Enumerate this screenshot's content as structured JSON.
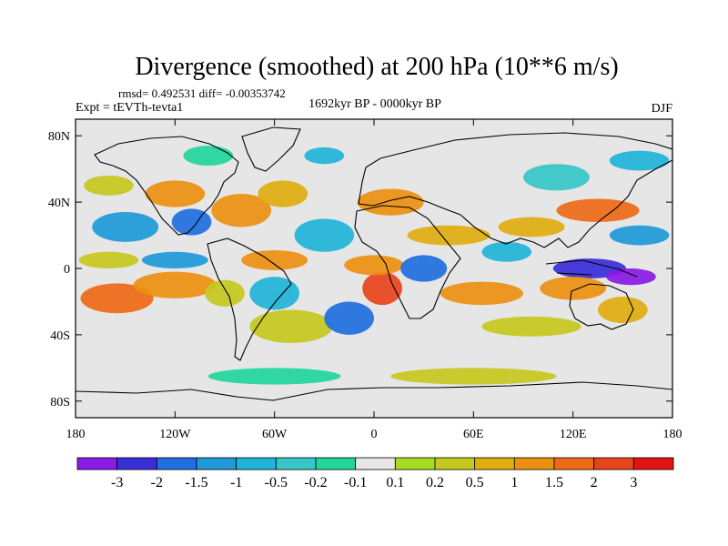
{
  "chart_data": {
    "type": "heatmap",
    "title": "Divergence (smoothed) at 200 hPa (10**6 m/s)",
    "stats": "rmsd= 0.492531 diff= -0.00353742",
    "experiment": "Expt = tEVTh-tevta1",
    "period": "1692kyr BP - 0000kyr BP",
    "season": "DJF",
    "x_ticks": [
      {
        "value": -180,
        "label": "180"
      },
      {
        "value": -120,
        "label": "120W"
      },
      {
        "value": -60,
        "label": "60W"
      },
      {
        "value": 0,
        "label": "0"
      },
      {
        "value": 60,
        "label": "60E"
      },
      {
        "value": 120,
        "label": "120E"
      },
      {
        "value": 180,
        "label": "180"
      }
    ],
    "y_ticks": [
      {
        "value": 80,
        "label": "80N"
      },
      {
        "value": 40,
        "label": "40N"
      },
      {
        "value": 0,
        "label": "0"
      },
      {
        "value": -40,
        "label": "40S"
      },
      {
        "value": -80,
        "label": "80S"
      }
    ],
    "xlim": [
      -180,
      180
    ],
    "ylim": [
      -90,
      90
    ],
    "levels": [
      "-3",
      "-2",
      "-1.5",
      "-1",
      "-0.5",
      "-0.2",
      "-0.1",
      "0.1",
      "0.2",
      "0.5",
      "1",
      "1.5",
      "2",
      "3"
    ],
    "colors": [
      "#8a1ae6",
      "#3a2ed8",
      "#1f6fe0",
      "#1e9ad8",
      "#20b4d8",
      "#36c7c8",
      "#22d69a",
      "#e6e6e6",
      "#a8dc22",
      "#c6c81e",
      "#e0ae10",
      "#ec9010",
      "#ee6a16",
      "#e8441c",
      "#e01414"
    ],
    "blobs": [
      {
        "lon": -155,
        "lat": -18,
        "rx": 22,
        "ry": 9,
        "bin": 12
      },
      {
        "lon": -120,
        "lat": -10,
        "rx": 25,
        "ry": 8,
        "bin": 11
      },
      {
        "lon": -160,
        "lat": 5,
        "rx": 18,
        "ry": 5,
        "bin": 9
      },
      {
        "lon": -120,
        "lat": 5,
        "rx": 20,
        "ry": 5,
        "bin": 3
      },
      {
        "lon": -150,
        "lat": 25,
        "rx": 20,
        "ry": 9,
        "bin": 3
      },
      {
        "lon": -110,
        "lat": 28,
        "rx": 12,
        "ry": 8,
        "bin": 2
      },
      {
        "lon": -120,
        "lat": 45,
        "rx": 18,
        "ry": 8,
        "bin": 11
      },
      {
        "lon": -160,
        "lat": 50,
        "rx": 15,
        "ry": 6,
        "bin": 9
      },
      {
        "lon": -80,
        "lat": 35,
        "rx": 18,
        "ry": 10,
        "bin": 11
      },
      {
        "lon": -55,
        "lat": 45,
        "rx": 15,
        "ry": 8,
        "bin": 10
      },
      {
        "lon": -100,
        "lat": 68,
        "rx": 15,
        "ry": 6,
        "bin": 6
      },
      {
        "lon": -30,
        "lat": 68,
        "rx": 12,
        "ry": 5,
        "bin": 4
      },
      {
        "lon": -60,
        "lat": 5,
        "rx": 20,
        "ry": 6,
        "bin": 11
      },
      {
        "lon": -60,
        "lat": -15,
        "rx": 15,
        "ry": 10,
        "bin": 4
      },
      {
        "lon": -90,
        "lat": -15,
        "rx": 12,
        "ry": 8,
        "bin": 9
      },
      {
        "lon": -50,
        "lat": -35,
        "rx": 25,
        "ry": 10,
        "bin": 9
      },
      {
        "lon": -15,
        "lat": -30,
        "rx": 15,
        "ry": 10,
        "bin": 2
      },
      {
        "lon": 5,
        "lat": -12,
        "rx": 12,
        "ry": 10,
        "bin": 13
      },
      {
        "lon": 0,
        "lat": 2,
        "rx": 18,
        "ry": 6,
        "bin": 11
      },
      {
        "lon": -30,
        "lat": 20,
        "rx": 18,
        "ry": 10,
        "bin": 4
      },
      {
        "lon": 10,
        "lat": 40,
        "rx": 20,
        "ry": 8,
        "bin": 11
      },
      {
        "lon": 30,
        "lat": 0,
        "rx": 14,
        "ry": 8,
        "bin": 2
      },
      {
        "lon": 45,
        "lat": 20,
        "rx": 25,
        "ry": 6,
        "bin": 10
      },
      {
        "lon": 65,
        "lat": -15,
        "rx": 25,
        "ry": 7,
        "bin": 11
      },
      {
        "lon": 80,
        "lat": 10,
        "rx": 15,
        "ry": 6,
        "bin": 4
      },
      {
        "lon": 95,
        "lat": 25,
        "rx": 20,
        "ry": 6,
        "bin": 10
      },
      {
        "lon": 135,
        "lat": 35,
        "rx": 25,
        "ry": 7,
        "bin": 12
      },
      {
        "lon": 110,
        "lat": 55,
        "rx": 20,
        "ry": 8,
        "bin": 5
      },
      {
        "lon": 130,
        "lat": 0,
        "rx": 22,
        "ry": 6,
        "bin": 1
      },
      {
        "lon": 155,
        "lat": -5,
        "rx": 15,
        "ry": 5,
        "bin": 0
      },
      {
        "lon": 120,
        "lat": -12,
        "rx": 20,
        "ry": 7,
        "bin": 11
      },
      {
        "lon": 150,
        "lat": -25,
        "rx": 15,
        "ry": 8,
        "bin": 10
      },
      {
        "lon": 95,
        "lat": -35,
        "rx": 30,
        "ry": 6,
        "bin": 9
      },
      {
        "lon": 160,
        "lat": 20,
        "rx": 18,
        "ry": 6,
        "bin": 3
      },
      {
        "lon": -60,
        "lat": -65,
        "rx": 40,
        "ry": 5,
        "bin": 6
      },
      {
        "lon": 60,
        "lat": -65,
        "rx": 50,
        "ry": 5,
        "bin": 9
      },
      {
        "lon": 160,
        "lat": 65,
        "rx": 18,
        "ry": 6,
        "bin": 4
      }
    ]
  }
}
